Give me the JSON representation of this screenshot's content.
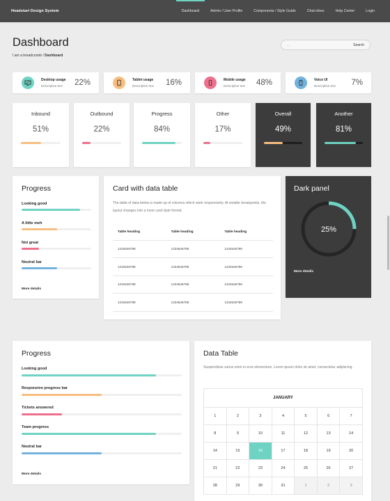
{
  "nav": {
    "brand": "Headstart Design System",
    "links": [
      "Dashboard",
      "Admin / User Profile",
      "Components / Style Guide",
      "Chat inbox",
      "Help Center",
      "Login"
    ]
  },
  "header": {
    "title": "Dashboard",
    "breadcrumb_prefix": "I am a breadcrumb / ",
    "breadcrumb_current": "Dashboard",
    "search_placeholder": "...",
    "search_button": "Search"
  },
  "usage_cards": [
    {
      "title": "Desktop usage",
      "desc": "Descriptive text",
      "value": "22%",
      "icon": "monitor-icon",
      "color": "#6ed3c3"
    },
    {
      "title": "Tablet usage",
      "desc": "Descriptive text",
      "value": "16%",
      "icon": "tablet-icon",
      "color": "#f7be7f"
    },
    {
      "title": "Mobile usage",
      "desc": "Descriptive text",
      "value": "48%",
      "icon": "mobile-icon",
      "color": "#ee6f8b"
    },
    {
      "title": "Voice UI",
      "desc": "Descriptive text",
      "value": "7%",
      "icon": "voice-device-icon",
      "color": "#72b2dd"
    }
  ],
  "stat_cards": [
    {
      "title": "Inbound",
      "value": "51%",
      "progress": 51,
      "color": "#f7be7f",
      "dark": false
    },
    {
      "title": "Outbound",
      "value": "22%",
      "progress": 22,
      "color": "#ee6f8b",
      "dark": false
    },
    {
      "title": "Progress",
      "value": "84%",
      "progress": 84,
      "color": "#6ed3c3",
      "dark": false
    },
    {
      "title": "Other",
      "value": "17%",
      "progress": 17,
      "color": "#ee6f8b",
      "dark": false
    },
    {
      "title": "Overall",
      "value": "49%",
      "progress": 49,
      "color": "#f7be7f",
      "dark": true
    },
    {
      "title": "Another",
      "value": "81%",
      "progress": 81,
      "color": "#6ed3c3",
      "dark": true
    }
  ],
  "progress_panel_1": {
    "title": "Progress",
    "items": [
      {
        "label": "Looking good",
        "progress": 84,
        "color": "#6ed3c3"
      },
      {
        "label": "A little meh",
        "progress": 51,
        "color": "#f7be7f"
      },
      {
        "label": "Not great",
        "progress": 25,
        "color": "#ee6f8b"
      },
      {
        "label": "Neutral bar",
        "progress": 51,
        "color": "#72b2dd"
      }
    ],
    "more": "More details"
  },
  "table_card": {
    "title": "Card with data table",
    "description": "The table of data below is made up of columns which work responsively. At smaller breakpoints, the layout changes into a more card style format.",
    "headers": [
      "Table heading",
      "Table heading",
      "Table heading"
    ],
    "rows": [
      [
        "1234546789",
        "1234546789",
        "1234546789"
      ],
      [
        "1234546789",
        "1234546789",
        "1234546789"
      ],
      [
        "1234546789",
        "1234546789",
        "1234546789"
      ],
      [
        "1234546789",
        "1234546789",
        "1234546789"
      ]
    ]
  },
  "dark_panel": {
    "title": "Dark panel",
    "value": "25%",
    "progress": 25,
    "color": "#6ed3c3",
    "more": "More details"
  },
  "progress_panel_2": {
    "title": "Progress",
    "items": [
      {
        "label": "Looking good",
        "progress": 84,
        "color": "#6ed3c3"
      },
      {
        "label": "Responsive progress bar",
        "progress": 50,
        "color": "#f7be7f"
      },
      {
        "label": "Tickets answered",
        "progress": 25,
        "color": "#ee6f8b"
      },
      {
        "label": "Team progress",
        "progress": 84,
        "color": "#6ed3c3"
      },
      {
        "label": "Neutral bar",
        "progress": 50,
        "color": "#72b2dd"
      }
    ],
    "more": "More details"
  },
  "data_table": {
    "title": "Data Table",
    "description": "Suspendisse varius enim in eros elementum. Lorem ipsum dolor sit amet, consectetur adipiscing.",
    "month": "JANUARY",
    "weeks": [
      [
        "1",
        "2",
        "3",
        "4",
        "5",
        "6",
        "7"
      ],
      [
        "8",
        "9",
        "10",
        "11",
        "12",
        "13",
        "14"
      ],
      [
        "14",
        "15",
        "16",
        "17",
        "18",
        "19",
        "20"
      ],
      [
        "21",
        "22",
        "23",
        "24",
        "25",
        "26",
        "27"
      ],
      [
        "28",
        "29",
        "30",
        "31",
        "1",
        "2",
        "3"
      ]
    ],
    "selected_day": "16",
    "muted_cells": [
      "4-4",
      "4-5",
      "4-6"
    ]
  }
}
